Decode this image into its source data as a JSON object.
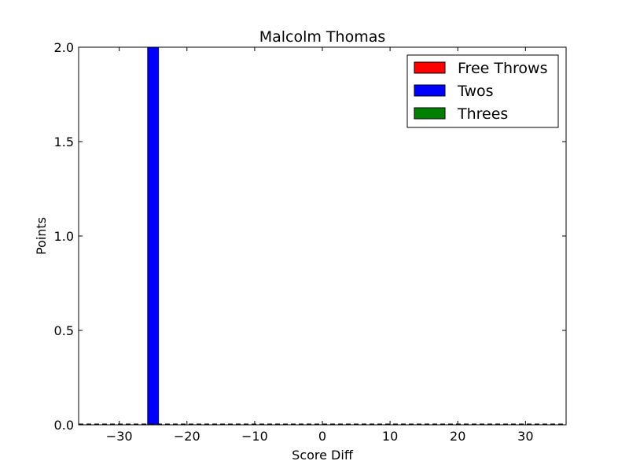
{
  "chart_data": {
    "type": "bar",
    "title": "Malcolm Thomas",
    "xlabel": "Score Diff",
    "ylabel": "Points",
    "xlim": [
      -36,
      36
    ],
    "ylim": [
      0,
      2.0
    ],
    "xticks": [
      -30,
      -20,
      -10,
      0,
      10,
      20,
      30
    ],
    "xtick_labels": [
      "−30",
      "−20",
      "−10",
      "0",
      "10",
      "20",
      "30"
    ],
    "yticks": [
      0.0,
      0.5,
      1.0,
      1.5,
      2.0
    ],
    "ytick_labels": [
      "0.0",
      "0.5",
      "1.0",
      "1.5",
      "2.0"
    ],
    "bar_width": 1.6,
    "stacked": true,
    "grid": false,
    "legend_position": "top-right",
    "series": [
      {
        "name": "Free Throws",
        "color": "#ff0000",
        "data": []
      },
      {
        "name": "Twos",
        "color": "#0000ff",
        "data": [
          {
            "x": -25,
            "y": 2
          }
        ]
      },
      {
        "name": "Threes",
        "color": "#008000",
        "data": []
      }
    ]
  }
}
